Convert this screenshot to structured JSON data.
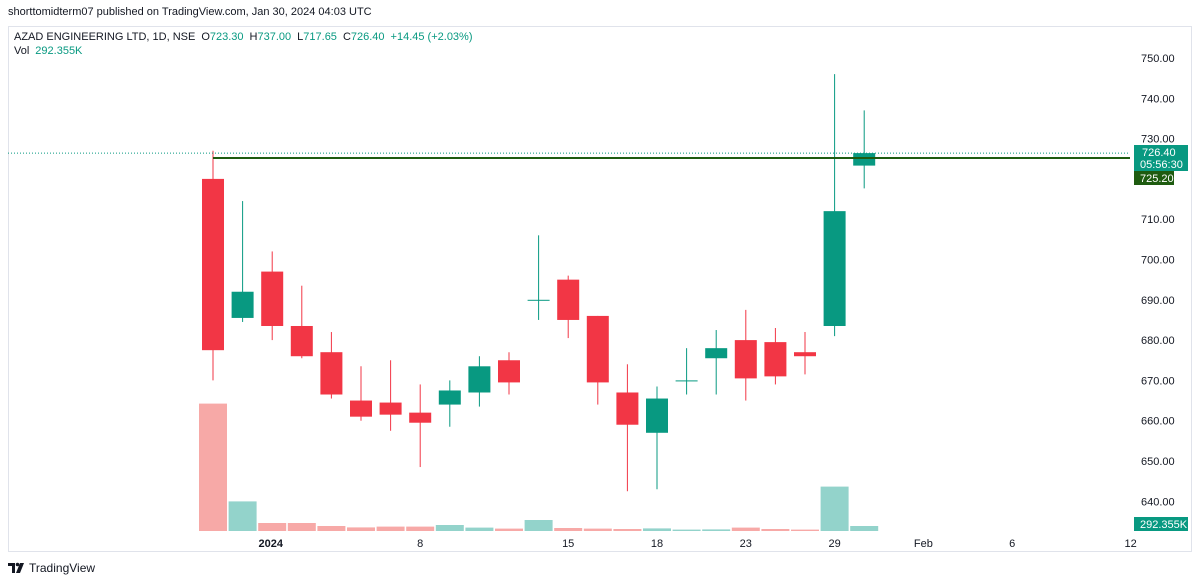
{
  "header": {
    "publish_text": "shorttomidterm07 published on TradingView.com, Jan 30, 2024 04:03 UTC"
  },
  "legend": {
    "symbol": "AZAD ENGINEERING LTD, 1D, NSE",
    "o_label": "O",
    "o_value": "723.30",
    "h_label": "H",
    "h_value": "737.00",
    "l_label": "L",
    "l_value": "717.65",
    "c_label": "C",
    "c_value": "726.40",
    "change": "+14.45 (+2.03%)",
    "vol_label": "Vol",
    "vol_value": "292.355K"
  },
  "price_tags": {
    "last_price": "726.40",
    "countdown": "05:56:30",
    "hline_price": "725.20",
    "volume": "292.355K"
  },
  "footer": {
    "brand": "TradingView"
  },
  "colors": {
    "up": "#089981",
    "down": "#f23645",
    "vol_up": "#93d3cb",
    "vol_down": "#f7a9a7",
    "hline": "#1e5b10",
    "grid_text": "#131722"
  },
  "chart_data": {
    "type": "candlestick",
    "symbol": "AZAD ENGINEERING LTD",
    "interval": "1D",
    "exchange": "NSE",
    "y_ticks": [
      640,
      650,
      660,
      670,
      680,
      690,
      700,
      710,
      720,
      730,
      740,
      750
    ],
    "y_tick_labels": [
      "640.00",
      "650.00",
      "660.00",
      "670.00",
      "680.00",
      "690.00",
      "700.00",
      "710.00",
      "",
      "730.00",
      "740.00",
      "750.00"
    ],
    "x_tick_labels": [
      {
        "label": "2024",
        "slot": 1.95
      },
      {
        "label": "8",
        "slot": 7
      },
      {
        "label": "15",
        "slot": 12
      },
      {
        "label": "18",
        "slot": 15
      },
      {
        "label": "23",
        "slot": 18
      },
      {
        "label": "29",
        "slot": 21
      },
      {
        "label": "Feb",
        "slot": 24
      },
      {
        "label": "6",
        "slot": 27
      },
      {
        "label": "12",
        "slot": 31
      }
    ],
    "horizontal_line": 725.2,
    "last_price": 726.4,
    "candles": [
      {
        "o": 720.0,
        "h": 727.0,
        "l": 670.0,
        "c": 677.5,
        "v": 637
      },
      {
        "o": 685.5,
        "h": 714.5,
        "l": 684.5,
        "c": 692.0,
        "v": 148
      },
      {
        "o": 697.0,
        "h": 702.0,
        "l": 680.0,
        "c": 683.5,
        "v": 40
      },
      {
        "o": 683.5,
        "h": 693.5,
        "l": 675.5,
        "c": 676.0,
        "v": 40
      },
      {
        "o": 677.0,
        "h": 682.0,
        "l": 665.5,
        "c": 666.5,
        "v": 25
      },
      {
        "o": 665.0,
        "h": 673.5,
        "l": 660.0,
        "c": 661.0,
        "v": 18
      },
      {
        "o": 664.5,
        "h": 675.0,
        "l": 657.5,
        "c": 661.5,
        "v": 22
      },
      {
        "o": 662.0,
        "h": 669.0,
        "l": 648.5,
        "c": 659.5,
        "v": 22
      },
      {
        "o": 664.0,
        "h": 670.0,
        "l": 658.5,
        "c": 667.5,
        "v": 30
      },
      {
        "o": 667.0,
        "h": 676.0,
        "l": 663.5,
        "c": 673.5,
        "v": 17
      },
      {
        "o": 675.0,
        "h": 677.0,
        "l": 666.5,
        "c": 669.5,
        "v": 12
      },
      {
        "o": 690.0,
        "h": 706.0,
        "l": 685.0,
        "c": 690.0,
        "v": 55
      },
      {
        "o": 695.0,
        "h": 696.0,
        "l": 680.5,
        "c": 685.0,
        "v": 15
      },
      {
        "o": 686.0,
        "h": 686.0,
        "l": 664.0,
        "c": 669.5,
        "v": 12
      },
      {
        "o": 667.0,
        "h": 674.0,
        "l": 642.5,
        "c": 659.0,
        "v": 10
      },
      {
        "o": 657.0,
        "h": 668.5,
        "l": 643.0,
        "c": 665.5,
        "v": 13
      },
      {
        "o": 670.0,
        "h": 678.0,
        "l": 666.5,
        "c": 670.0,
        "v": 7
      },
      {
        "o": 675.5,
        "h": 682.5,
        "l": 666.5,
        "c": 678.0,
        "v": 8
      },
      {
        "o": 680.0,
        "h": 687.5,
        "l": 665.0,
        "c": 670.5,
        "v": 17
      },
      {
        "o": 679.5,
        "h": 683.0,
        "l": 669.0,
        "c": 671.0,
        "v": 10
      },
      {
        "o": 677.0,
        "h": 682.0,
        "l": 671.5,
        "c": 676.0,
        "v": 7
      },
      {
        "o": 683.5,
        "h": 746.0,
        "l": 681.0,
        "c": 712.0,
        "v": 222
      },
      {
        "o": 723.3,
        "h": 737.0,
        "l": 717.65,
        "c": 726.4,
        "v": 25
      }
    ]
  }
}
